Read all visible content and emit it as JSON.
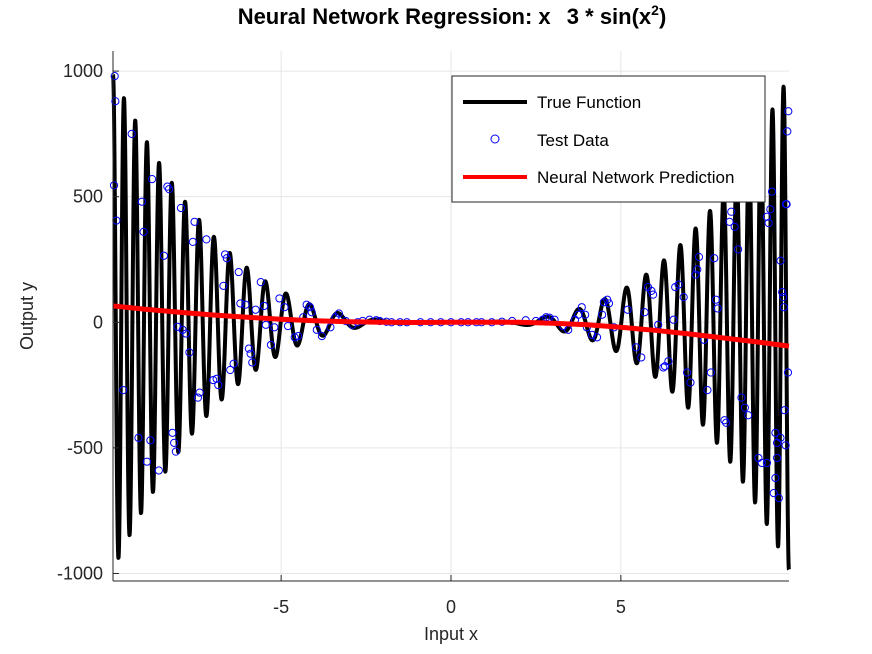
{
  "chart_data": {
    "type": "line",
    "title": {
      "part1": "Neural Network Regression: x",
      "part2": "3 * sin(x",
      "sup": "2",
      "part3": ")"
    },
    "xlabel": "Input x",
    "ylabel": "Output y",
    "xlim": [
      -9.95,
      9.95
    ],
    "ylim": [
      -1030,
      1080
    ],
    "xticks": [
      -5,
      0,
      5
    ],
    "xtick_labels": [
      "-5",
      "0",
      "5"
    ],
    "yticks": [
      -1000,
      -500,
      0,
      500,
      1000
    ],
    "ytick_labels": [
      "-1000",
      "-500",
      "0",
      "500",
      "1000"
    ],
    "grid": true,
    "legend_position": "top-right",
    "series": [
      {
        "name": "True Function",
        "kind": "line",
        "color": "#000000",
        "function": "x^3 * sin(x^2)",
        "x_range": [
          -9.95,
          9.95
        ]
      },
      {
        "name": "Test Data",
        "kind": "scatter",
        "color": "#0000ff",
        "marker": "open-circle",
        "points": [
          [
            -9.9,
            980
          ],
          [
            -9.88,
            880
          ],
          [
            -9.92,
            545
          ],
          [
            -9.85,
            405
          ],
          [
            -9.65,
            -270
          ],
          [
            -9.4,
            750
          ],
          [
            -9.2,
            -460
          ],
          [
            -9.1,
            480
          ],
          [
            -9.05,
            360
          ],
          [
            -8.95,
            -555
          ],
          [
            -8.85,
            -470
          ],
          [
            -8.8,
            570
          ],
          [
            -8.6,
            -590
          ],
          [
            -8.45,
            265
          ],
          [
            -8.35,
            540
          ],
          [
            -8.3,
            530
          ],
          [
            -8.2,
            -440
          ],
          [
            -8.15,
            -480
          ],
          [
            -8.1,
            -515
          ],
          [
            -8.05,
            -18
          ],
          [
            -7.95,
            455
          ],
          [
            -7.9,
            -30
          ],
          [
            -7.8,
            -45
          ],
          [
            -7.7,
            -120
          ],
          [
            -7.6,
            320
          ],
          [
            -7.55,
            400
          ],
          [
            -7.45,
            -300
          ],
          [
            -7.4,
            -280
          ],
          [
            -7.2,
            330
          ],
          [
            -7.0,
            -230
          ],
          [
            -6.9,
            -225
          ],
          [
            -6.85,
            -250
          ],
          [
            -6.7,
            145
          ],
          [
            -6.65,
            270
          ],
          [
            -6.6,
            255
          ],
          [
            -6.5,
            -190
          ],
          [
            -6.4,
            -165
          ],
          [
            -6.25,
            200
          ],
          [
            -6.2,
            75
          ],
          [
            -6.05,
            70
          ],
          [
            -5.95,
            -105
          ],
          [
            -5.9,
            -125
          ],
          [
            -5.85,
            -160
          ],
          [
            -5.75,
            50
          ],
          [
            -5.6,
            160
          ],
          [
            -5.5,
            65
          ],
          [
            -5.45,
            -10
          ],
          [
            -5.3,
            -90
          ],
          [
            -5.2,
            -20
          ],
          [
            -5.05,
            95
          ],
          [
            -4.9,
            60
          ],
          [
            -4.8,
            -15
          ],
          [
            -4.6,
            -60
          ],
          [
            -4.5,
            -55
          ],
          [
            -4.35,
            20
          ],
          [
            -4.25,
            70
          ],
          [
            -4.15,
            60
          ],
          [
            -4.1,
            40
          ],
          [
            -3.95,
            -30
          ],
          [
            -3.8,
            -55
          ],
          [
            -3.55,
            -20
          ],
          [
            -3.4,
            20
          ],
          [
            -3.3,
            35
          ],
          [
            -3.1,
            5
          ],
          [
            -2.9,
            -10
          ],
          [
            -2.75,
            0
          ],
          [
            -2.6,
            5
          ],
          [
            -2.4,
            10
          ],
          [
            -2.2,
            8
          ],
          [
            -2.1,
            5
          ],
          [
            -1.9,
            2
          ],
          [
            -1.75,
            0
          ],
          [
            -1.5,
            0
          ],
          [
            -1.3,
            0
          ],
          [
            -0.9,
            0
          ],
          [
            -0.6,
            0
          ],
          [
            -0.3,
            0
          ],
          [
            0.0,
            0
          ],
          [
            0.3,
            0
          ],
          [
            0.5,
            0
          ],
          [
            0.75,
            0
          ],
          [
            0.9,
            0
          ],
          [
            1.2,
            0
          ],
          [
            1.5,
            2
          ],
          [
            1.8,
            5
          ],
          [
            2.2,
            8
          ],
          [
            2.5,
            5
          ],
          [
            2.7,
            10
          ],
          [
            2.8,
            20
          ],
          [
            2.9,
            18
          ],
          [
            3.05,
            10
          ],
          [
            3.3,
            -15
          ],
          [
            3.45,
            -30
          ],
          [
            3.65,
            10
          ],
          [
            3.75,
            30
          ],
          [
            3.85,
            60
          ],
          [
            3.95,
            30
          ],
          [
            4.0,
            -20
          ],
          [
            4.15,
            -50
          ],
          [
            4.3,
            -60
          ],
          [
            4.45,
            30
          ],
          [
            4.5,
            80
          ],
          [
            4.6,
            90
          ],
          [
            4.65,
            75
          ],
          [
            4.8,
            -20
          ],
          [
            5.2,
            50
          ],
          [
            5.45,
            -100
          ],
          [
            5.6,
            -140
          ],
          [
            5.7,
            40
          ],
          [
            5.8,
            140
          ],
          [
            5.9,
            125
          ],
          [
            5.95,
            110
          ],
          [
            6.1,
            -10
          ],
          [
            6.25,
            -180
          ],
          [
            6.3,
            -175
          ],
          [
            6.4,
            -155
          ],
          [
            6.55,
            10
          ],
          [
            6.6,
            140
          ],
          [
            6.7,
            150
          ],
          [
            6.85,
            100
          ],
          [
            6.95,
            -200
          ],
          [
            7.05,
            -240
          ],
          [
            7.2,
            190
          ],
          [
            7.25,
            210
          ],
          [
            7.3,
            260
          ],
          [
            7.45,
            -70
          ],
          [
            7.55,
            -270
          ],
          [
            7.65,
            -200
          ],
          [
            7.75,
            255
          ],
          [
            7.8,
            90
          ],
          [
            7.85,
            55
          ],
          [
            8.05,
            -390
          ],
          [
            8.1,
            -400
          ],
          [
            8.2,
            400
          ],
          [
            8.25,
            440
          ],
          [
            8.35,
            380
          ],
          [
            8.45,
            290
          ],
          [
            8.55,
            -300
          ],
          [
            8.65,
            -340
          ],
          [
            8.75,
            -370
          ],
          [
            9.05,
            -540
          ],
          [
            9.15,
            -560
          ],
          [
            9.3,
            420
          ],
          [
            9.35,
            395
          ],
          [
            9.4,
            450
          ],
          [
            9.55,
            -440
          ],
          [
            9.6,
            -540
          ],
          [
            9.65,
            -700
          ],
          [
            9.7,
            245
          ],
          [
            9.75,
            120
          ],
          [
            9.8,
            60
          ],
          [
            9.85,
            -490
          ],
          [
            9.7,
            -460
          ],
          [
            9.5,
            -680
          ],
          [
            9.55,
            -620
          ],
          [
            9.3,
            -560
          ],
          [
            9.78,
            100
          ],
          [
            9.82,
            -350
          ],
          [
            9.88,
            470
          ],
          [
            9.9,
            760
          ],
          [
            9.93,
            840
          ],
          [
            9.86,
            470
          ],
          [
            9.92,
            -200
          ],
          [
            9.6,
            -480
          ],
          [
            9.45,
            520
          ]
        ]
      },
      {
        "name": "Neural Network Prediction",
        "kind": "line",
        "color": "#ff0000",
        "points": [
          [
            -9.95,
            65
          ],
          [
            -9.0,
            52
          ],
          [
            -8.0,
            40
          ],
          [
            -7.0,
            29
          ],
          [
            -6.0,
            20
          ],
          [
            -5.0,
            12
          ],
          [
            -4.0,
            6
          ],
          [
            -3.0,
            2
          ],
          [
            -2.0,
            0
          ],
          [
            -1.0,
            -1
          ],
          [
            0.0,
            0
          ],
          [
            1.0,
            0
          ],
          [
            2.0,
            0
          ],
          [
            3.0,
            -4
          ],
          [
            4.0,
            -10
          ],
          [
            5.0,
            -20
          ],
          [
            6.0,
            -32
          ],
          [
            7.0,
            -46
          ],
          [
            8.0,
            -62
          ],
          [
            9.0,
            -78
          ],
          [
            9.95,
            -95
          ]
        ]
      }
    ]
  }
}
